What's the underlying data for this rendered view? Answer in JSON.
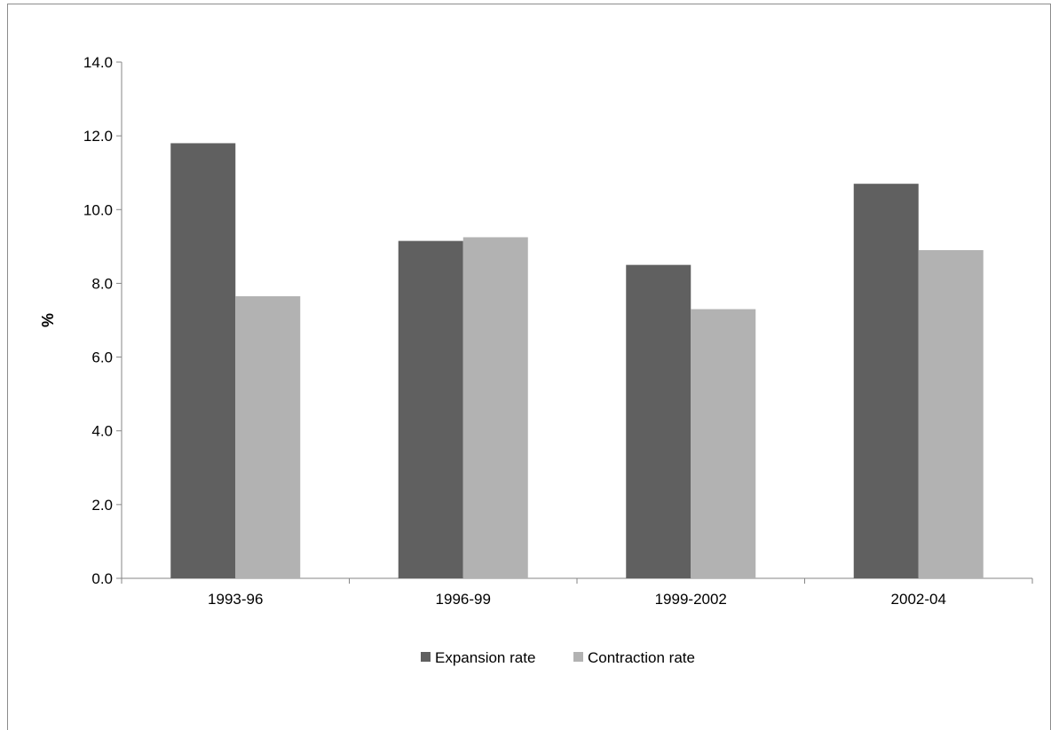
{
  "chart_data": {
    "type": "bar",
    "title": "",
    "xlabel": "",
    "ylabel": "%",
    "ylim": [
      0,
      14
    ],
    "y_ticks": [
      "0.0",
      "2.0",
      "4.0",
      "6.0",
      "8.0",
      "10.0",
      "12.0",
      "14.0"
    ],
    "categories": [
      "1993-96",
      "1996-99",
      "1999-2002",
      "2002-04"
    ],
    "series": [
      {
        "name": "Expansion rate",
        "color": "#606060",
        "values": [
          11.8,
          9.15,
          8.5,
          10.7
        ]
      },
      {
        "name": "Contraction rate",
        "color": "#b2b2b2",
        "values": [
          7.65,
          9.25,
          7.3,
          8.9
        ]
      }
    ],
    "grid": false,
    "legend_position": "bottom"
  }
}
